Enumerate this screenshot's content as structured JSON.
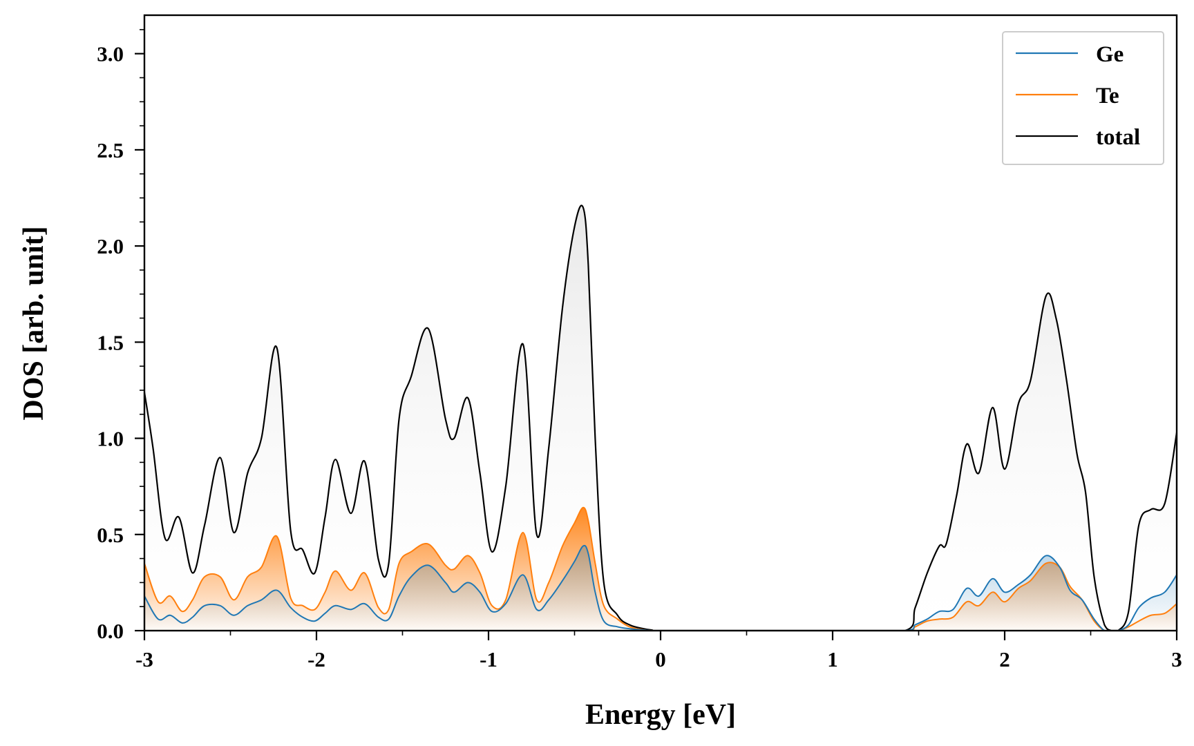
{
  "chart_data": {
    "type": "line",
    "title": "",
    "xlabel": "Energy [eV]",
    "ylabel": "DOS [arb. unit]",
    "xlim": [
      -3,
      3
    ],
    "ylim": [
      0,
      3.2
    ],
    "x_ticks": [
      -3,
      -2,
      -1,
      0,
      1,
      2,
      3
    ],
    "x_tick_labels": [
      "-3",
      "-2",
      "-1",
      "0",
      "1",
      "2",
      "3"
    ],
    "y_ticks": [
      0,
      0.5,
      1,
      1.5,
      2,
      2.5,
      3
    ],
    "y_tick_labels": [
      "0.0",
      "0.5",
      "1.0",
      "1.5",
      "2.0",
      "2.5",
      "3.0"
    ],
    "legend_position": "top-right",
    "series": [
      {
        "name": "Ge",
        "color": "#1f77b4",
        "filled": true,
        "x": [
          -3.0,
          -2.92,
          -2.85,
          -2.78,
          -2.72,
          -2.65,
          -2.56,
          -2.48,
          -2.4,
          -2.32,
          -2.23,
          -2.15,
          -2.08,
          -2.01,
          -1.95,
          -1.89,
          -1.8,
          -1.72,
          -1.64,
          -1.58,
          -1.52,
          -1.45,
          -1.35,
          -1.25,
          -1.2,
          -1.12,
          -1.05,
          -0.98,
          -0.9,
          -0.8,
          -0.72,
          -0.65,
          -0.57,
          -0.5,
          -0.45,
          -0.42,
          -0.38,
          -0.33,
          -0.25,
          -0.18,
          -0.1,
          -0.05,
          0.0,
          0.5,
          1.0,
          1.42,
          1.48,
          1.55,
          1.62,
          1.7,
          1.78,
          1.85,
          1.93,
          2.0,
          2.08,
          2.15,
          2.24,
          2.32,
          2.38,
          2.45,
          2.52,
          2.58,
          2.62,
          2.66,
          2.72,
          2.78,
          2.85,
          2.93,
          3.0
        ],
        "values": [
          0.18,
          0.06,
          0.08,
          0.04,
          0.07,
          0.13,
          0.13,
          0.08,
          0.13,
          0.16,
          0.21,
          0.12,
          0.07,
          0.05,
          0.09,
          0.13,
          0.11,
          0.14,
          0.07,
          0.06,
          0.18,
          0.28,
          0.34,
          0.25,
          0.2,
          0.25,
          0.2,
          0.1,
          0.14,
          0.29,
          0.11,
          0.16,
          0.26,
          0.36,
          0.44,
          0.4,
          0.2,
          0.05,
          0.02,
          0.01,
          0.003,
          0.0,
          0.0,
          0.0,
          0.0,
          0.0,
          0.03,
          0.06,
          0.1,
          0.11,
          0.22,
          0.18,
          0.27,
          0.2,
          0.24,
          0.29,
          0.39,
          0.33,
          0.21,
          0.16,
          0.06,
          0.0,
          0.0,
          0.0,
          0.03,
          0.12,
          0.17,
          0.2,
          0.29
        ]
      },
      {
        "name": "Te",
        "color": "#ff7f0e",
        "filled": true,
        "x": [
          -3.0,
          -2.92,
          -2.85,
          -2.78,
          -2.72,
          -2.65,
          -2.56,
          -2.48,
          -2.4,
          -2.32,
          -2.23,
          -2.15,
          -2.08,
          -2.01,
          -1.95,
          -1.89,
          -1.8,
          -1.72,
          -1.64,
          -1.58,
          -1.52,
          -1.45,
          -1.35,
          -1.25,
          -1.2,
          -1.12,
          -1.05,
          -0.98,
          -0.9,
          -0.8,
          -0.72,
          -0.65,
          -0.57,
          -0.5,
          -0.45,
          -0.42,
          -0.38,
          -0.33,
          -0.25,
          -0.18,
          -0.1,
          -0.05,
          0.0,
          0.5,
          1.0,
          1.42,
          1.48,
          1.55,
          1.62,
          1.7,
          1.78,
          1.85,
          1.93,
          2.0,
          2.08,
          2.15,
          2.24,
          2.32,
          2.38,
          2.45,
          2.52,
          2.58,
          2.62,
          2.66,
          2.72,
          2.78,
          2.85,
          2.93,
          3.0
        ],
        "values": [
          0.35,
          0.15,
          0.18,
          0.1,
          0.16,
          0.28,
          0.28,
          0.16,
          0.28,
          0.33,
          0.49,
          0.17,
          0.13,
          0.11,
          0.2,
          0.31,
          0.21,
          0.3,
          0.12,
          0.11,
          0.35,
          0.41,
          0.45,
          0.34,
          0.32,
          0.39,
          0.3,
          0.13,
          0.16,
          0.51,
          0.16,
          0.25,
          0.44,
          0.56,
          0.64,
          0.57,
          0.35,
          0.13,
          0.06,
          0.02,
          0.004,
          0.0,
          0.0,
          0.0,
          0.0,
          0.0,
          0.02,
          0.05,
          0.06,
          0.07,
          0.15,
          0.13,
          0.2,
          0.15,
          0.22,
          0.26,
          0.35,
          0.33,
          0.23,
          0.16,
          0.05,
          0.0,
          0.0,
          0.0,
          0.02,
          0.05,
          0.08,
          0.09,
          0.14
        ]
      },
      {
        "name": "total",
        "color": "#000000",
        "filled": true,
        "x": [
          -3.0,
          -2.95,
          -2.88,
          -2.8,
          -2.72,
          -2.65,
          -2.56,
          -2.48,
          -2.4,
          -2.32,
          -2.23,
          -2.15,
          -2.08,
          -2.01,
          -1.95,
          -1.89,
          -1.8,
          -1.72,
          -1.64,
          -1.58,
          -1.52,
          -1.45,
          -1.35,
          -1.25,
          -1.2,
          -1.12,
          -1.05,
          -0.98,
          -0.9,
          -0.8,
          -0.72,
          -0.65,
          -0.57,
          -0.5,
          -0.45,
          -0.42,
          -0.38,
          -0.33,
          -0.25,
          -0.18,
          -0.1,
          -0.05,
          0.0,
          0.5,
          1.0,
          1.42,
          1.48,
          1.55,
          1.62,
          1.66,
          1.72,
          1.78,
          1.85,
          1.93,
          2.0,
          2.08,
          2.15,
          2.24,
          2.3,
          2.36,
          2.42,
          2.47,
          2.52,
          2.58,
          2.62,
          2.66,
          2.72,
          2.78,
          2.85,
          2.93,
          3.0
        ],
        "values": [
          1.24,
          0.95,
          0.48,
          0.59,
          0.3,
          0.55,
          0.9,
          0.51,
          0.82,
          1.0,
          1.47,
          0.52,
          0.42,
          0.3,
          0.59,
          0.89,
          0.61,
          0.88,
          0.37,
          0.35,
          1.1,
          1.32,
          1.57,
          1.1,
          1.0,
          1.21,
          0.82,
          0.41,
          0.75,
          1.49,
          0.5,
          0.95,
          1.68,
          2.1,
          2.2,
          1.9,
          1.0,
          0.25,
          0.08,
          0.03,
          0.01,
          0.003,
          0.0,
          0.0,
          0.0,
          0.0,
          0.12,
          0.3,
          0.44,
          0.45,
          0.7,
          0.97,
          0.82,
          1.16,
          0.84,
          1.18,
          1.3,
          1.74,
          1.62,
          1.3,
          0.92,
          0.72,
          0.28,
          0.03,
          0.0,
          0.0,
          0.1,
          0.55,
          0.63,
          0.66,
          1.03
        ]
      }
    ]
  }
}
